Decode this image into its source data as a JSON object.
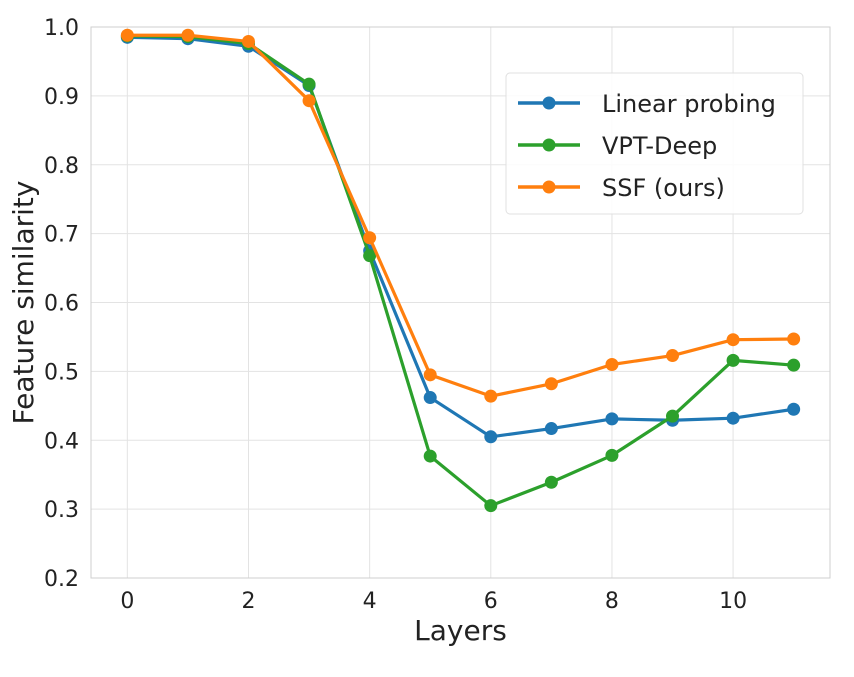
{
  "chart_data": {
    "type": "line",
    "title": "",
    "xlabel": "Layers",
    "ylabel": "Feature similarity",
    "x": [
      0,
      1,
      2,
      3,
      4,
      5,
      6,
      7,
      8,
      9,
      10,
      11
    ],
    "xlim": [
      -0.6,
      11.6
    ],
    "ylim": [
      0.2,
      1.0
    ],
    "xticks": [
      0,
      2,
      4,
      6,
      8,
      10
    ],
    "yticks": [
      0.2,
      0.3,
      0.4,
      0.5,
      0.6,
      0.7,
      0.8,
      0.9,
      1.0
    ],
    "xtick_labels": [
      "0",
      "2",
      "4",
      "6",
      "8",
      "10"
    ],
    "ytick_labels": [
      "0.2",
      "0.3",
      "0.4",
      "0.5",
      "0.6",
      "0.7",
      "0.8",
      "0.9",
      "1.0"
    ],
    "grid": true,
    "legend_position": "upper-right",
    "series": [
      {
        "name": "Linear probing",
        "color": "#1f77b4",
        "values": [
          0.985,
          0.983,
          0.972,
          0.915,
          0.675,
          0.462,
          0.405,
          0.417,
          0.431,
          0.429,
          0.432,
          0.445
        ]
      },
      {
        "name": "VPT-Deep",
        "color": "#2ca02c",
        "values": [
          0.987,
          0.986,
          0.976,
          0.917,
          0.668,
          0.377,
          0.305,
          0.339,
          0.378,
          0.435,
          0.516,
          0.509
        ]
      },
      {
        "name": "SSF (ours)",
        "color": "#ff7f0e",
        "values": [
          0.988,
          0.988,
          0.979,
          0.893,
          0.694,
          0.495,
          0.464,
          0.482,
          0.51,
          0.523,
          0.546,
          0.547
        ]
      }
    ]
  }
}
